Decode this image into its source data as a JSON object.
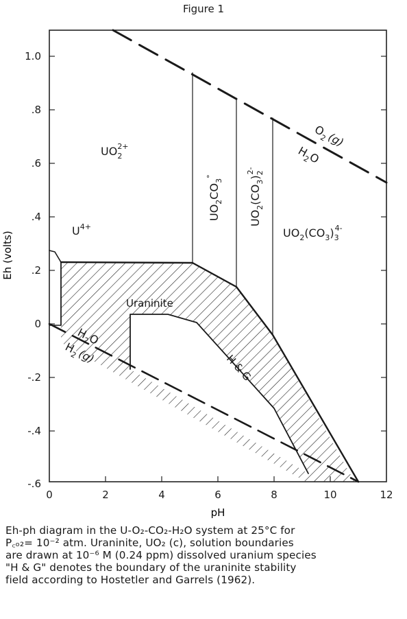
{
  "title": "Figure 1",
  "axes": {
    "xlabel": "pH",
    "ylabel": "Eh (volts)",
    "xlim": [
      0,
      12
    ],
    "ylim": [
      -0.6,
      1.1
    ],
    "x_ticks": [
      "0",
      "2",
      "4",
      "6",
      "8",
      "10",
      "12"
    ],
    "y_ticks": [
      "1.0",
      ".8",
      ".6",
      ".4",
      ".2",
      "0",
      "-.2",
      "-.4",
      "-.6"
    ]
  },
  "fields": {
    "uo2": {
      "main": "UO",
      "sub": "2",
      "sup": "2+"
    },
    "u4": {
      "main": "U",
      "sup": "4+"
    },
    "uo2co3": {
      "a": "UO",
      "b": "2",
      "c": "CO",
      "d": "3",
      "e": "°"
    },
    "uo2co32": {
      "a": "UO",
      "b": "2",
      "c": "(CO",
      "d": "3",
      "e": ")",
      "f": "2",
      "g": "2-"
    },
    "uo2co33": {
      "a": "UO",
      "b": "2",
      "c": "(CO",
      "d": "3",
      "e": ")",
      "f": "3",
      "g": "4-"
    },
    "uraninite": "Uraninite"
  },
  "boundaries": {
    "o2_line": {
      "a": "O",
      "b": "2",
      "c": "(g)"
    },
    "h2o_upper": {
      "a": "H",
      "b": "2",
      "c": "O"
    },
    "h2o_lower": {
      "a": "H",
      "b": "2",
      "c": "O"
    },
    "h2_line": {
      "a": "H",
      "b": "2",
      "c": "(g)"
    },
    "hg": "H & G"
  },
  "caption": {
    "line1": "Eh-ph diagram in the U-O₂-CO₂-H₂O system at 25°C for",
    "line2": "P꜀ₒ₂= 10⁻² atm. Uraninite, UO₂ (c), solution boundaries",
    "line3": "are drawn at 10⁻⁶ M (0.24 ppm) dissolved uranium species",
    "line4": "\"H & G\" denotes the boundary of the uraninite stability",
    "line5": "field according to Hostetler and Garrels (1962)."
  }
}
